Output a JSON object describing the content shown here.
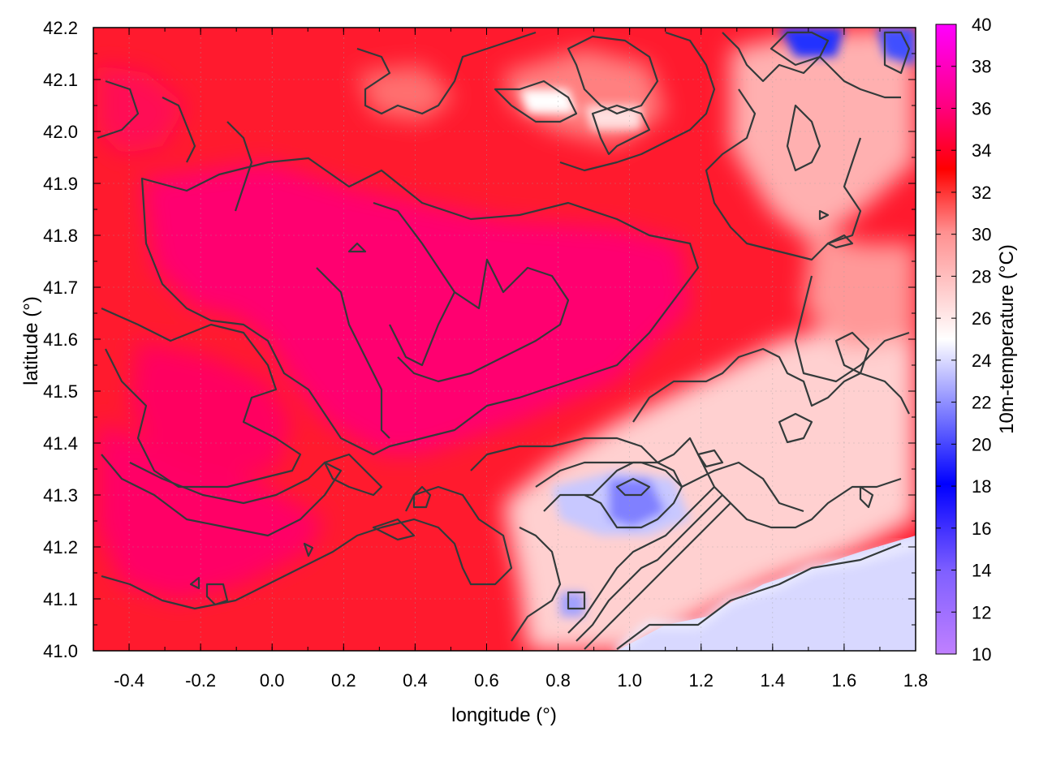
{
  "chart_data": {
    "type": "heatmap",
    "title": "",
    "xlabel": "longitude (°)",
    "ylabel": "latitude (°)",
    "colorbar_label": "10m-temperature (°C)",
    "xlim": [
      -0.5,
      1.8
    ],
    "ylim": [
      41.0,
      42.2
    ],
    "x_ticks": [
      "-0.4",
      "-0.2",
      "0.0",
      "0.2",
      "0.4",
      "0.6",
      "0.8",
      "1.0",
      "1.2",
      "1.4",
      "1.6",
      "1.8"
    ],
    "x_tick_values": [
      -0.4,
      -0.2,
      0.0,
      0.2,
      0.4,
      0.6,
      0.8,
      1.0,
      1.2,
      1.4,
      1.6,
      1.8
    ],
    "y_ticks": [
      "41.0",
      "41.1",
      "41.2",
      "41.3",
      "41.4",
      "41.5",
      "41.6",
      "41.7",
      "41.8",
      "41.9",
      "42.0",
      "42.1",
      "42.2"
    ],
    "y_tick_values": [
      41.0,
      41.1,
      41.2,
      41.3,
      41.4,
      41.5,
      41.6,
      41.7,
      41.8,
      41.9,
      42.0,
      42.1,
      42.2
    ],
    "colorbar_range": [
      10,
      40
    ],
    "colorbar_ticks": [
      "10",
      "12",
      "14",
      "16",
      "18",
      "20",
      "22",
      "24",
      "26",
      "28",
      "30",
      "32",
      "34",
      "36",
      "38",
      "40"
    ],
    "colorbar_tick_values": [
      10,
      12,
      14,
      16,
      18,
      20,
      22,
      24,
      26,
      28,
      30,
      32,
      34,
      36,
      38,
      40
    ],
    "colormap": [
      {
        "value": 10,
        "color": "#c080ff"
      },
      {
        "value": 14,
        "color": "#8060ff"
      },
      {
        "value": 18,
        "color": "#0000ff"
      },
      {
        "value": 22,
        "color": "#9090ff"
      },
      {
        "value": 25,
        "color": "#ffffff"
      },
      {
        "value": 30,
        "color": "#ff9090"
      },
      {
        "value": 33,
        "color": "#ff0000"
      },
      {
        "value": 36,
        "color": "#ff0080"
      },
      {
        "value": 40,
        "color": "#ff00ff"
      }
    ],
    "grid": true,
    "contours": true,
    "sea_temperature_c": 23.5
  }
}
